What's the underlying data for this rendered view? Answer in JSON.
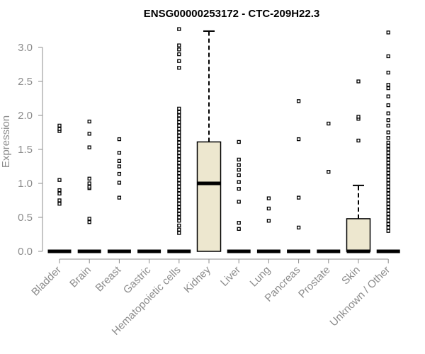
{
  "chart_data": {
    "type": "box",
    "title": "ENSG00000253172 - CTC-209H22.3",
    "xlabel": "",
    "ylabel": "Expression",
    "ylim": [
      0,
      3.3
    ],
    "yticks": [
      "0.0",
      "0.5",
      "1.0",
      "1.5",
      "2.0",
      "2.5",
      "3.0"
    ],
    "grid": false,
    "box_fill": "#ede7cf",
    "categories": [
      "Bladder",
      "Brain",
      "Breast",
      "Gastric",
      "Hematopoietic cells",
      "Kidney",
      "Liver",
      "Lung",
      "Pancreas",
      "Prostate",
      "Skin",
      "Unknown / Other"
    ],
    "boxes": [
      {
        "category": "Bladder",
        "q1": 0,
        "median": 0,
        "q3": 0,
        "whisker_low": 0,
        "whisker_high": 0,
        "outliers": [
          0.7,
          0.75,
          0.85,
          0.9,
          1.05,
          1.77,
          1.8,
          1.85
        ]
      },
      {
        "category": "Brain",
        "q1": 0,
        "median": 0,
        "q3": 0,
        "whisker_low": 0,
        "whisker_high": 0,
        "outliers": [
          0.43,
          0.48,
          0.93,
          0.95,
          1.0,
          1.07,
          1.53,
          1.73,
          1.91
        ]
      },
      {
        "category": "Breast",
        "q1": 0,
        "median": 0,
        "q3": 0,
        "whisker_low": 0,
        "whisker_high": 0,
        "outliers": [
          0.79,
          1.01,
          1.14,
          1.25,
          1.33,
          1.45,
          1.65
        ]
      },
      {
        "category": "Gastric",
        "q1": 0,
        "median": 0,
        "q3": 0,
        "whisker_low": 0,
        "whisker_high": 0,
        "outliers": []
      },
      {
        "category": "Hematopoietic cells",
        "q1": 0,
        "median": 0,
        "q3": 0,
        "whisker_low": 0,
        "whisker_high": 0,
        "outliers": [
          0.27,
          0.32,
          0.38,
          0.45,
          0.5,
          0.55,
          0.6,
          0.65,
          0.7,
          0.75,
          0.8,
          0.85,
          0.9,
          0.95,
          1.0,
          1.05,
          1.1,
          1.15,
          1.2,
          1.25,
          1.3,
          1.35,
          1.4,
          1.45,
          1.5,
          1.55,
          1.6,
          1.65,
          1.7,
          1.75,
          1.8,
          1.85,
          1.9,
          1.95,
          2.0,
          2.05,
          2.1,
          2.7,
          2.8,
          2.9,
          2.97,
          3.03,
          3.27
        ]
      },
      {
        "category": "Kidney",
        "q1": 0,
        "median": 1.0,
        "q3": 1.61,
        "whisker_low": 0,
        "whisker_high": 3.24,
        "outliers": []
      },
      {
        "category": "Liver",
        "q1": 0,
        "median": 0,
        "q3": 0,
        "whisker_low": 0,
        "whisker_high": 0,
        "outliers": [
          0.33,
          0.42,
          0.73,
          0.92,
          1.02,
          1.12,
          1.2,
          1.27,
          1.35,
          1.61
        ]
      },
      {
        "category": "Lung",
        "q1": 0,
        "median": 0,
        "q3": 0,
        "whisker_low": 0,
        "whisker_high": 0,
        "outliers": [
          0.45,
          0.63,
          0.78
        ]
      },
      {
        "category": "Pancreas",
        "q1": 0,
        "median": 0,
        "q3": 0,
        "whisker_low": 0,
        "whisker_high": 0,
        "outliers": [
          0.35,
          0.79,
          1.65,
          2.21
        ]
      },
      {
        "category": "Prostate",
        "q1": 0,
        "median": 0,
        "q3": 0,
        "whisker_low": 0,
        "whisker_high": 0,
        "outliers": [
          1.17,
          1.88
        ]
      },
      {
        "category": "Skin",
        "q1": 0,
        "median": 0,
        "q3": 0.48,
        "whisker_low": 0,
        "whisker_high": 0.97,
        "outliers": [
          1.63,
          1.95,
          1.98,
          2.5
        ]
      },
      {
        "category": "Unknown / Other",
        "q1": 0,
        "median": 0,
        "q3": 0,
        "whisker_low": 0,
        "whisker_high": 0,
        "outliers": [
          0.3,
          0.35,
          0.4,
          0.45,
          0.5,
          0.55,
          0.6,
          0.65,
          0.7,
          0.75,
          0.8,
          0.85,
          0.9,
          0.95,
          1.0,
          1.05,
          1.1,
          1.15,
          1.2,
          1.25,
          1.3,
          1.35,
          1.4,
          1.45,
          1.5,
          1.55,
          1.6,
          1.67,
          1.75,
          1.85,
          1.93,
          2.03,
          2.15,
          2.28,
          2.4,
          2.45,
          2.63,
          2.87,
          3.22
        ]
      }
    ]
  }
}
